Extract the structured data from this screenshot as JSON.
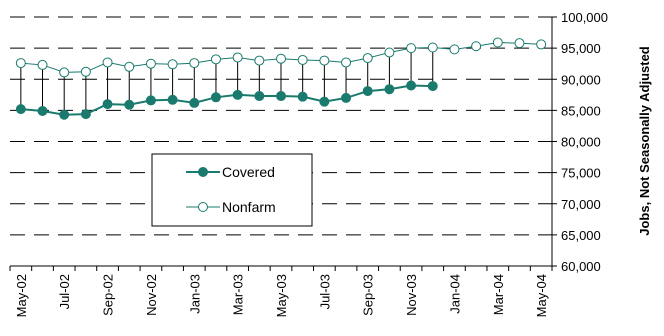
{
  "chart_data": {
    "type": "line",
    "ylabel": "Jobs, Not Seasonally Adjusted",
    "ylim": [
      60000,
      100000
    ],
    "yticks": [
      "60,000",
      "65,000",
      "70,000",
      "75,000",
      "80,000",
      "85,000",
      "90,000",
      "95,000",
      "100,000"
    ],
    "grid": true,
    "legend_position": "center-left",
    "x": [
      "May-02",
      "Jun-02",
      "Jul-02",
      "Aug-02",
      "Sep-02",
      "Oct-02",
      "Nov-02",
      "Dec-02",
      "Jan-03",
      "Feb-03",
      "Mar-03",
      "Apr-03",
      "May-03",
      "Jun-03",
      "Jul-03",
      "Aug-03",
      "Sep-03",
      "Oct-03",
      "Nov-03",
      "Dec-03",
      "Jan-04",
      "Feb-04",
      "Mar-04",
      "Apr-04",
      "May-04"
    ],
    "xtick_labels": [
      "May-02",
      "Jul-02",
      "Sep-02",
      "Nov-02",
      "Jan-03",
      "Mar-03",
      "May-03",
      "Jul-03",
      "Sep-03",
      "Nov-03",
      "Jan-04",
      "Mar-04",
      "May-04"
    ],
    "series": [
      {
        "name": "Covered",
        "color": "#1a7a6e",
        "marker": "filled-circle",
        "values": [
          85200,
          84900,
          84300,
          84400,
          86000,
          85900,
          86600,
          86700,
          86200,
          87100,
          87500,
          87300,
          87300,
          87200,
          86400,
          87000,
          88100,
          88400,
          89000,
          88900,
          null,
          null,
          null,
          null,
          null
        ]
      },
      {
        "name": "Nonfarm",
        "color": "#1a7a6e",
        "marker": "open-circle",
        "values": [
          92600,
          92300,
          91100,
          91200,
          92700,
          92000,
          92500,
          92400,
          92600,
          93200,
          93500,
          93000,
          93300,
          93100,
          93000,
          92700,
          93400,
          94300,
          95000,
          95100,
          94800,
          95300,
          95900,
          95800,
          95600
        ]
      }
    ]
  }
}
